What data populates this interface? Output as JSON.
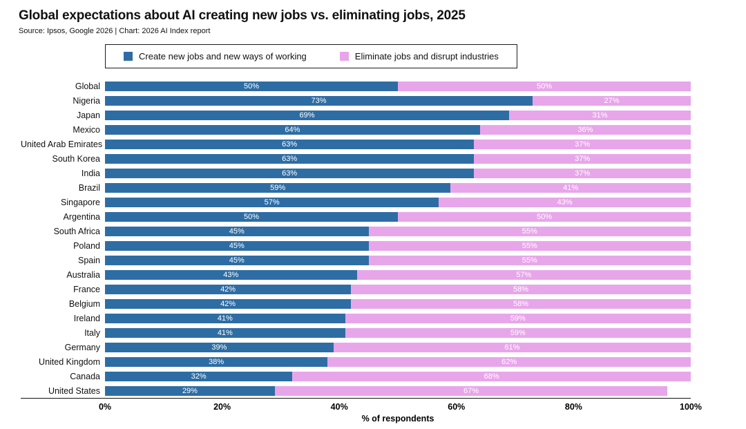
{
  "header": {
    "title": "Global expectations about AI creating new jobs vs. eliminating jobs, 2025",
    "source": "Source: Ipsos, Google 2026 | Chart: 2026 AI Index report"
  },
  "legend": {
    "items": [
      {
        "label": "Create new jobs and new ways of working",
        "color": "#2e6da4"
      },
      {
        "label": "Eliminate jobs and disrupt industries",
        "color": "#e8a6ea"
      }
    ]
  },
  "chart_data": {
    "type": "bar",
    "orientation": "horizontal",
    "stacked": true,
    "title": "Global expectations about AI creating new jobs vs. eliminating jobs, 2025",
    "xlabel": "% of respondents",
    "xlim": [
      0,
      100
    ],
    "grid": false,
    "legend_position": "top",
    "x_ticks": [
      {
        "value": 0,
        "label": "0%"
      },
      {
        "value": 20,
        "label": "20%"
      },
      {
        "value": 40,
        "label": "40%"
      },
      {
        "value": 60,
        "label": "60%"
      },
      {
        "value": 80,
        "label": "80%"
      },
      {
        "value": 100,
        "label": "100%"
      }
    ],
    "categories": [
      "Global",
      "Nigeria",
      "Japan",
      "Mexico",
      "United Arab Emirates",
      "South Korea",
      "India",
      "Brazil",
      "Singapore",
      "Argentina",
      "South Africa",
      "Poland",
      "Spain",
      "Australia",
      "France",
      "Belgium",
      "Ireland",
      "Italy",
      "Germany",
      "United Kingdom",
      "Canada",
      "United States"
    ],
    "series": [
      {
        "name": "Create new jobs and new ways of working",
        "color": "#2e6da4",
        "values": [
          50,
          73,
          69,
          64,
          63,
          63,
          63,
          59,
          57,
          50,
          45,
          45,
          45,
          43,
          42,
          42,
          41,
          41,
          39,
          38,
          32,
          29
        ]
      },
      {
        "name": "Eliminate jobs and disrupt industries",
        "color": "#e8a6ea",
        "values": [
          50,
          27,
          31,
          36,
          37,
          37,
          37,
          41,
          43,
          50,
          55,
          55,
          55,
          57,
          58,
          58,
          59,
          59,
          61,
          62,
          68,
          67
        ]
      }
    ]
  }
}
